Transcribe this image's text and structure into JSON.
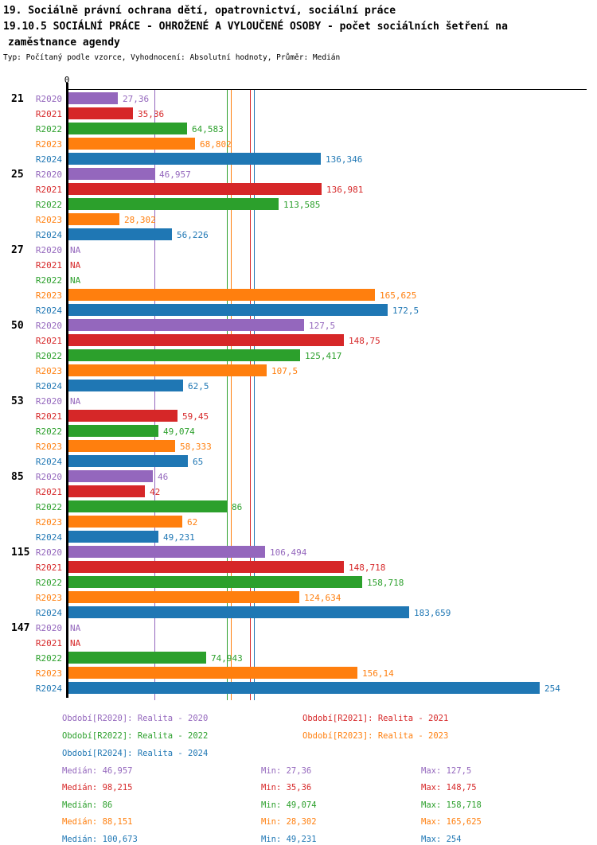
{
  "header": {
    "title_line1": "19. Sociálně právní ochrana dětí, opatrovnictví, sociální práce",
    "title_line2": "19.10.5 SOCIÁLNÍ PRÁCE - OHROŽENÉ A VYLOUČENÉ OSOBY - počet sociálních šetření na",
    "title_line3": "zaměstnance agendy",
    "meta": "Typ: Počítaný podle vzorce, Vyhodnocení: Absolutní hodnoty, Průměr: Medián"
  },
  "axis": {
    "zero_label": "0"
  },
  "chart_data": {
    "type": "bar",
    "orientation": "horizontal",
    "na_label": "NA",
    "xlim": [
      0,
      279
    ],
    "grid": false,
    "legend_position": "bottom",
    "categories": [
      "21",
      "25",
      "27",
      "50",
      "53",
      "85",
      "115",
      "147"
    ],
    "series": [
      {
        "name": "R2020",
        "color": "#9467bd",
        "legend_label": "Období[R2020]: Realita - 2020",
        "median": 46.957,
        "min": 27.36,
        "max": 127.5,
        "values": [
          27.36,
          46.957,
          null,
          127.5,
          null,
          46,
          106.494,
          null
        ],
        "value_labels": [
          "27,36",
          "46,957",
          "NA",
          "127,5",
          "NA",
          "46",
          "106,494",
          "NA"
        ]
      },
      {
        "name": "R2021",
        "color": "#d62728",
        "legend_label": "Období[R2021]: Realita - 2021",
        "median": 98.215,
        "min": 35.36,
        "max": 148.75,
        "values": [
          35.36,
          136.981,
          null,
          148.75,
          59.45,
          42,
          148.718,
          null
        ],
        "value_labels": [
          "35,36",
          "136,981",
          "NA",
          "148,75",
          "59,45",
          "42",
          "148,718",
          "NA"
        ]
      },
      {
        "name": "R2022",
        "color": "#2ca02c",
        "legend_label": "Období[R2022]: Realita - 2022",
        "median": 86,
        "min": 49.074,
        "max": 158.718,
        "values": [
          64.583,
          113.585,
          null,
          125.417,
          49.074,
          86,
          158.718,
          74.943
        ],
        "value_labels": [
          "64,583",
          "113,585",
          "NA",
          "125,417",
          "49,074",
          "86",
          "158,718",
          "74,943"
        ]
      },
      {
        "name": "R2023",
        "color": "#ff7f0e",
        "legend_label": "Období[R2023]: Realita - 2023",
        "median": 88.151,
        "min": 28.302,
        "max": 165.625,
        "values": [
          68.802,
          28.302,
          165.625,
          107.5,
          58.333,
          62,
          124.634,
          156.14
        ],
        "value_labels": [
          "68,802",
          "28,302",
          "165,625",
          "107,5",
          "58,333",
          "62",
          "124,634",
          "156,14"
        ]
      },
      {
        "name": "R2024",
        "color": "#1f77b4",
        "legend_label": "Období[R2024]: Realita - 2024",
        "median": 100.673,
        "min": 49.231,
        "max": 254,
        "values": [
          136.346,
          56.226,
          172.5,
          62.5,
          65,
          49.231,
          183.659,
          254
        ],
        "value_labels": [
          "136,346",
          "56,226",
          "172,5",
          "62,5",
          "65",
          "49,231",
          "183,659",
          "254"
        ]
      }
    ]
  },
  "stats": {
    "rows": [
      {
        "median": "Medián: 46,957",
        "min": "Min: 27,36",
        "max": "Max: 127,5"
      },
      {
        "median": "Medián: 98,215",
        "min": "Min: 35,36",
        "max": "Max: 148,75"
      },
      {
        "median": "Medián: 86",
        "min": "Min: 49,074",
        "max": "Max: 158,718"
      },
      {
        "median": "Medián: 88,151",
        "min": "Min: 28,302",
        "max": "Max: 165,625"
      },
      {
        "median": "Medián: 100,673",
        "min": "Min: 49,231",
        "max": "Max: 254"
      }
    ]
  }
}
